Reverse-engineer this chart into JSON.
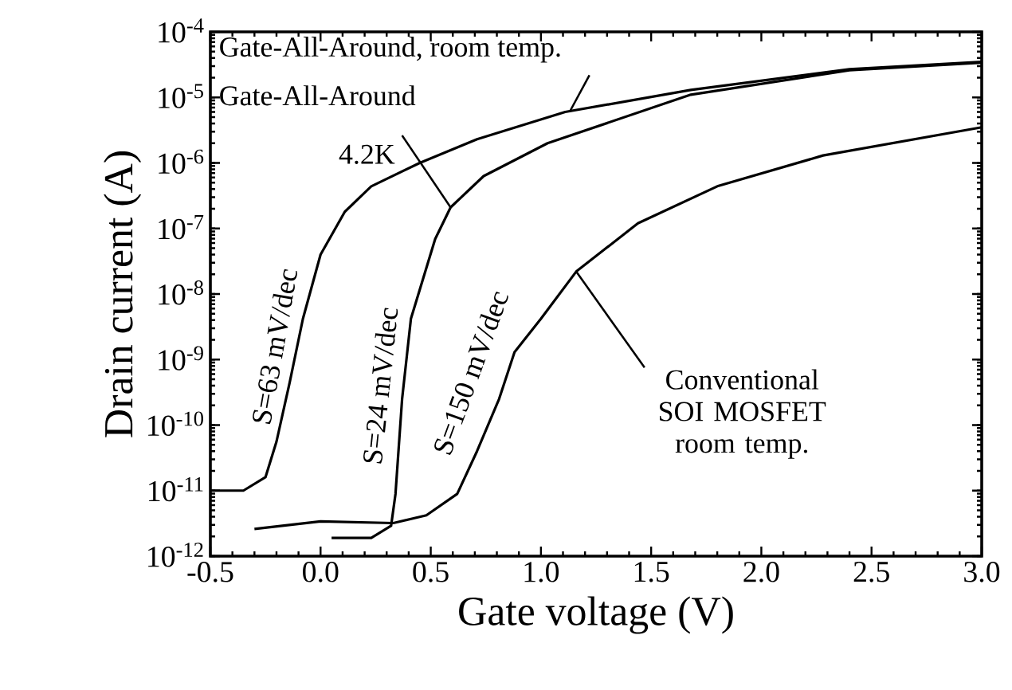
{
  "chart_data": {
    "type": "line",
    "xlabel": "Gate voltage (V)",
    "ylabel": "Drain current (A)",
    "log": "y",
    "xlim": [
      -0.5,
      3.0
    ],
    "ylim": [
      1e-12,
      0.0001
    ],
    "xticks": [
      {
        "value": -0.5,
        "label": "-0.5"
      },
      {
        "value": 0,
        "label": "0.0"
      },
      {
        "value": 0.5,
        "label": "0.5"
      },
      {
        "value": 1,
        "label": "1.0"
      },
      {
        "value": 1.5,
        "label": "1.5"
      },
      {
        "value": 2,
        "label": "2.0"
      },
      {
        "value": 2.5,
        "label": "2.5"
      },
      {
        "value": 3,
        "label": "3.0"
      }
    ],
    "yticks": [
      {
        "value": 1e-12,
        "label": "10$^{-12}$"
      },
      {
        "value": 1e-11,
        "label": "10$^{-11}$"
      },
      {
        "value": 1e-10,
        "label": "10$^{-10}$"
      },
      {
        "value": 1e-09,
        "label": "10$^{-9}$"
      },
      {
        "value": 1e-08,
        "label": "10$^{-8}$"
      },
      {
        "value": 1e-07,
        "label": "10$^{-7}$"
      },
      {
        "value": 1e-06,
        "label": "10$^{-6}$"
      },
      {
        "value": 1e-05,
        "label": "10$^{-5}$"
      },
      {
        "value": 0.0001,
        "label": "10$^{-4}$"
      }
    ],
    "series": [
      {
        "color": "#000000",
        "x": [
          -0.5,
          -0.35,
          -0.25,
          -0.2,
          -0.14,
          -0.08,
          0.0,
          0.11,
          0.23,
          0.45,
          0.71,
          1.11,
          1.68,
          2.4,
          3.0
        ],
        "values": [
          1e-11,
          1e-11,
          1.6e-11,
          5.6e-11,
          4.5e-10,
          4.2e-09,
          4e-08,
          1.8e-07,
          4.4e-07,
          1e-06,
          2.3e-06,
          6e-06,
          1.3e-05,
          2.7e-05,
          3.5e-05
        ]
      },
      {
        "color": "#000000",
        "x": [
          0.05,
          0.23,
          0.32,
          0.34,
          0.37,
          0.41,
          0.52,
          0.59,
          0.74,
          1.03,
          1.68,
          2.4,
          3.0
        ],
        "values": [
          1.9e-12,
          1.9e-12,
          2.9e-12,
          8.9e-12,
          2.5e-10,
          4.2e-09,
          6.9e-08,
          2.1e-07,
          6.3e-07,
          2e-06,
          1.1e-05,
          2.6e-05,
          3.4e-05
        ]
      },
      {
        "color": "#000000",
        "x": [
          -0.3,
          0.0,
          0.33,
          0.48,
          0.62,
          0.71,
          0.81,
          0.88,
          1.0,
          1.16,
          1.44,
          1.8,
          2.28,
          3.0
        ],
        "values": [
          2.6e-12,
          3.4e-12,
          3.2e-12,
          4.2e-12,
          8.9e-12,
          4e-11,
          2.5e-10,
          1.3e-09,
          4.2e-09,
          2.2e-08,
          1.2e-07,
          4.4e-07,
          1.3e-06,
          3.5e-06
        ]
      }
    ],
    "annotations": [
      {
        "text": "Gate-All-Around, room temp.",
        "x": 1.13,
        "y": 6e-06
      },
      "Gate-All-Around",
      {
        "text": "4.2K",
        "x": 0.59,
        "y": 2.1e-07
      },
      "S=63 mV/dec",
      "S=24 mV/dec",
      "S=150 mV/dec",
      {
        "text": "Conventional SOI MOSFET room temp.",
        "x": 1.16,
        "y": 2.2e-08
      }
    ]
  }
}
